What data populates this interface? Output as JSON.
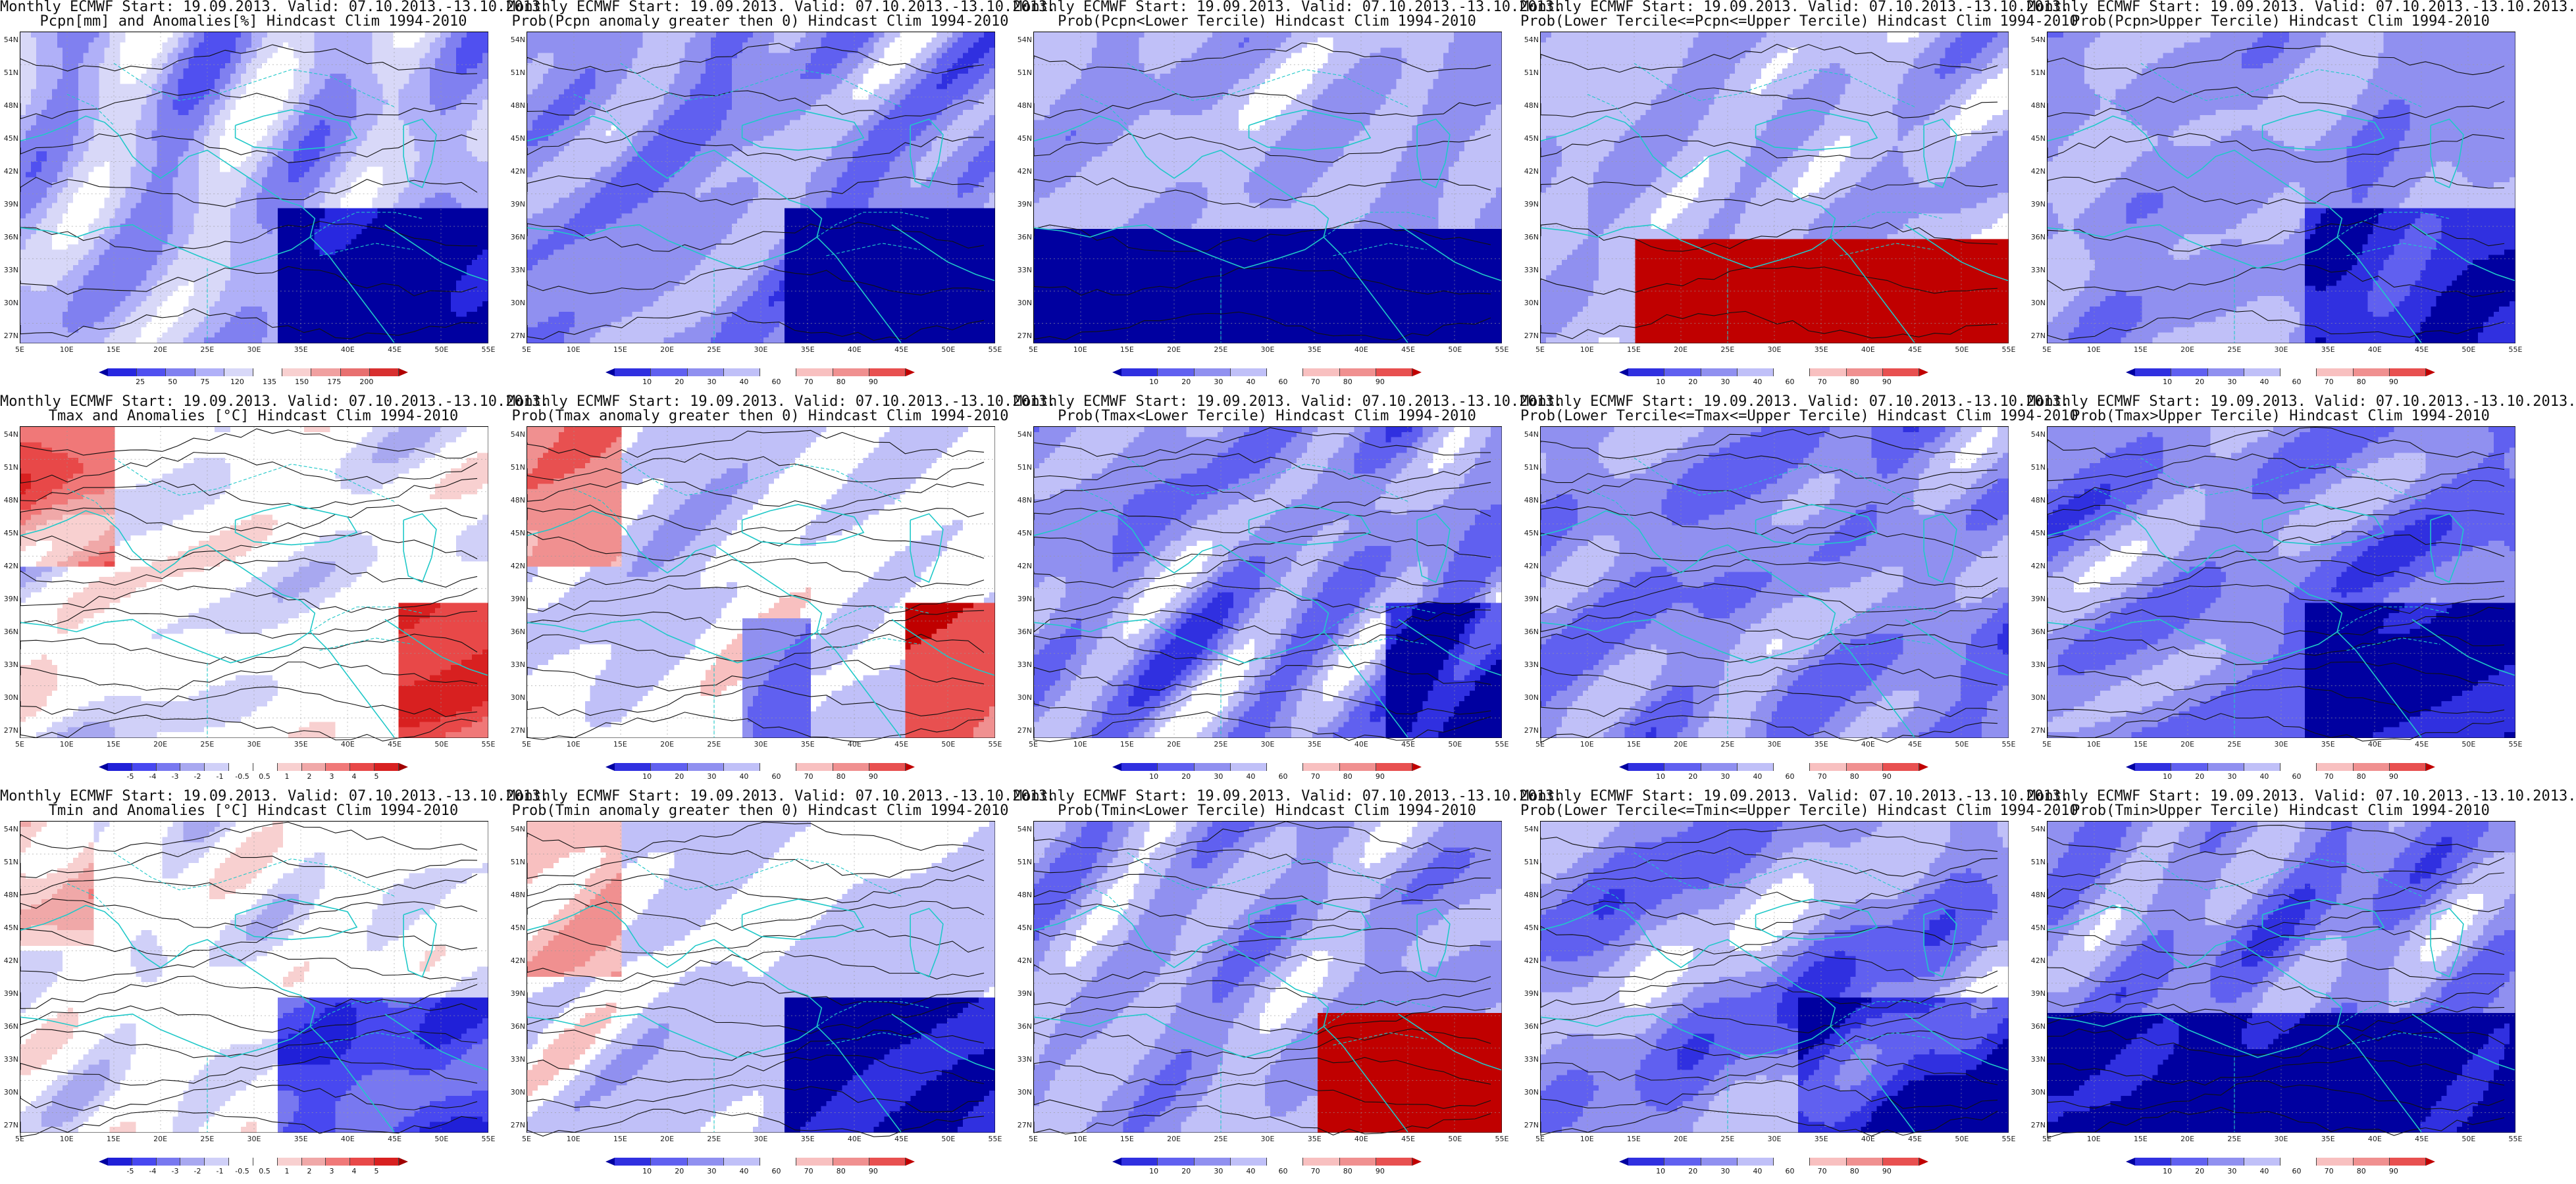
{
  "palettes": {
    "anom": [
      "#0000a0",
      "#2020d8",
      "#4848f0",
      "#7878f0",
      "#a8a8f0",
      "#d0d0f8",
      "#ffffff",
      "#ffffff",
      "#f8d0d0",
      "#f0a8a8",
      "#f07878",
      "#e84848",
      "#d82020",
      "#a00000"
    ],
    "prob": [
      "#0000a0",
      "#3030e0",
      "#6060f0",
      "#9090f0",
      "#c0c0f8",
      "#ffffff",
      "#f8c0c0",
      "#f09090",
      "#e85050",
      "#c00000"
    ],
    "pcpn": [
      "#0000a0",
      "#2828e0",
      "#5050f0",
      "#8080f0",
      "#b0b0f8",
      "#d8d8f8",
      "#ffffff",
      "#f8d0d0",
      "#f0a0a0",
      "#e87070",
      "#d83030",
      "#b00000"
    ],
    "contour": "#111111",
    "coast": "#20c8c8"
  },
  "axes": {
    "lat_labels": [
      "54N",
      "51N",
      "48N",
      "45N",
      "42N",
      "39N",
      "36N",
      "33N",
      "30N",
      "27N"
    ],
    "lon_labels": [
      "5E",
      "10E",
      "15E",
      "20E",
      "25E",
      "30E",
      "35E",
      "40E",
      "45E",
      "50E",
      "55E"
    ]
  },
  "colorbars": {
    "pcpn_anom": [
      "25",
      "50",
      "75",
      "120",
      "135",
      "150",
      "175",
      "200"
    ],
    "prob": [
      "10",
      "20",
      "30",
      "40",
      "60",
      "70",
      "80",
      "90"
    ],
    "temp_anom": [
      "-5",
      "-4",
      "-3",
      "-2",
      "-1",
      "-0.5",
      "0.5",
      "1",
      "2",
      "3",
      "4",
      "5"
    ]
  },
  "panels": [
    {
      "line1": "Monthly ECMWF Start: 19.09.2013. Valid: 07.10.2013.-13.10.2013.",
      "line2": "Pcpn[mm] and Anomalies[%] Hindcast Clim 1994-2010",
      "cbar": "pcpn_anom",
      "palette": "pcpn",
      "field": "pcpn_anom",
      "seed": 11
    },
    {
      "line1": "Monthly ECMWF Start: 19.09.2013. Valid: 07.10.2013.-13.10.2013.",
      "line2": "Prob(Pcpn anomaly greater then 0) Hindcast Clim 1994-2010",
      "cbar": "prob",
      "palette": "prob",
      "field": "pcpn_pos",
      "seed": 12
    },
    {
      "line1": "Monthly ECMWF Start: 19.09.2013. Valid: 07.10.2013.-13.10.2013.",
      "line2": "Prob(Pcpn<Lower Tercile) Hindcast Clim 1994-2010",
      "cbar": "prob",
      "palette": "prob",
      "field": "pcpn_low",
      "seed": 13
    },
    {
      "line1": "Monthly ECMWF Start: 19.09.2013. Valid: 07.10.2013.-13.10.2013.",
      "line2": "Prob(Lower Tercile<=Pcpn<=Upper Tercile) Hindcast Clim 1994-2010",
      "cbar": "prob",
      "palette": "prob",
      "field": "pcpn_mid",
      "seed": 14
    },
    {
      "line1": "Monthly ECMWF Start: 19.09.2013. Valid: 07.10.2013.-13.10.2013.",
      "line2": "Prob(Pcpn>Upper Tercile) Hindcast Clim 1994-2010",
      "cbar": "prob",
      "palette": "prob",
      "field": "pcpn_up",
      "seed": 15
    },
    {
      "line1": "Monthly ECMWF Start: 19.09.2013. Valid: 07.10.2013.-13.10.2013.",
      "line2": "Tmax and Anomalies [°C] Hindcast Clim 1994-2010",
      "cbar": "temp_anom",
      "palette": "anom",
      "field": "tmax_anom",
      "seed": 21
    },
    {
      "line1": "Monthly ECMWF Start: 19.09.2013. Valid: 07.10.2013.-13.10.2013.",
      "line2": "Prob(Tmax anomaly greater then 0) Hindcast Clim 1994-2010",
      "cbar": "prob",
      "palette": "prob",
      "field": "tmax_pos",
      "seed": 22
    },
    {
      "line1": "Monthly ECMWF Start: 19.09.2013. Valid: 07.10.2013.-13.10.2013.",
      "line2": "Prob(Tmax<Lower Tercile) Hindcast Clim 1994-2010",
      "cbar": "prob",
      "palette": "prob",
      "field": "tmax_low",
      "seed": 23
    },
    {
      "line1": "Monthly ECMWF Start: 19.09.2013. Valid: 07.10.2013.-13.10.2013.",
      "line2": "Prob(Lower Tercile<=Tmax<=Upper Tercile) Hindcast Clim 1994-2010",
      "cbar": "prob",
      "palette": "prob",
      "field": "tmax_mid",
      "seed": 24
    },
    {
      "line1": "Monthly ECMWF Start: 19.09.2013. Valid: 07.10.2013.-13.10.2013.",
      "line2": "Prob(Tmax>Upper Tercile) Hindcast Clim 1994-2010",
      "cbar": "prob",
      "palette": "prob",
      "field": "tmax_up",
      "seed": 25
    },
    {
      "line1": "Monthly ECMWF Start: 19.09.2013. Valid: 07.10.2013.-13.10.2013.",
      "line2": "Tmin and Anomalies [°C] Hindcast Clim 1994-2010",
      "cbar": "temp_anom",
      "palette": "anom",
      "field": "tmin_anom",
      "seed": 31
    },
    {
      "line1": "Monthly ECMWF Start: 19.09.2013. Valid: 07.10.2013.-13.10.2013.",
      "line2": "Prob(Tmin anomaly greater then 0) Hindcast Clim 1994-2010",
      "cbar": "prob",
      "palette": "prob",
      "field": "tmin_pos",
      "seed": 32
    },
    {
      "line1": "Monthly ECMWF Start: 19.09.2013. Valid: 07.10.2013.-13.10.2013.",
      "line2": "Prob(Tmin<Lower Tercile) Hindcast Clim 1994-2010",
      "cbar": "prob",
      "palette": "prob",
      "field": "tmin_low",
      "seed": 33
    },
    {
      "line1": "Monthly ECMWF Start: 19.09.2013. Valid: 07.10.2013.-13.10.2013.",
      "line2": "Prob(Lower Tercile<=Tmin<=Upper Tercile) Hindcast Clim 1994-2010",
      "cbar": "prob",
      "palette": "prob",
      "field": "tmin_mid",
      "seed": 34
    },
    {
      "line1": "Monthly ECMWF Start: 19.09.2013. Valid: 07.10.2013.-13.10.2013.",
      "line2": "Prob(Tmin>Upper Tercile) Hindcast Clim 1994-2010",
      "cbar": "prob",
      "palette": "prob",
      "field": "tmin_up",
      "seed": 35
    }
  ]
}
